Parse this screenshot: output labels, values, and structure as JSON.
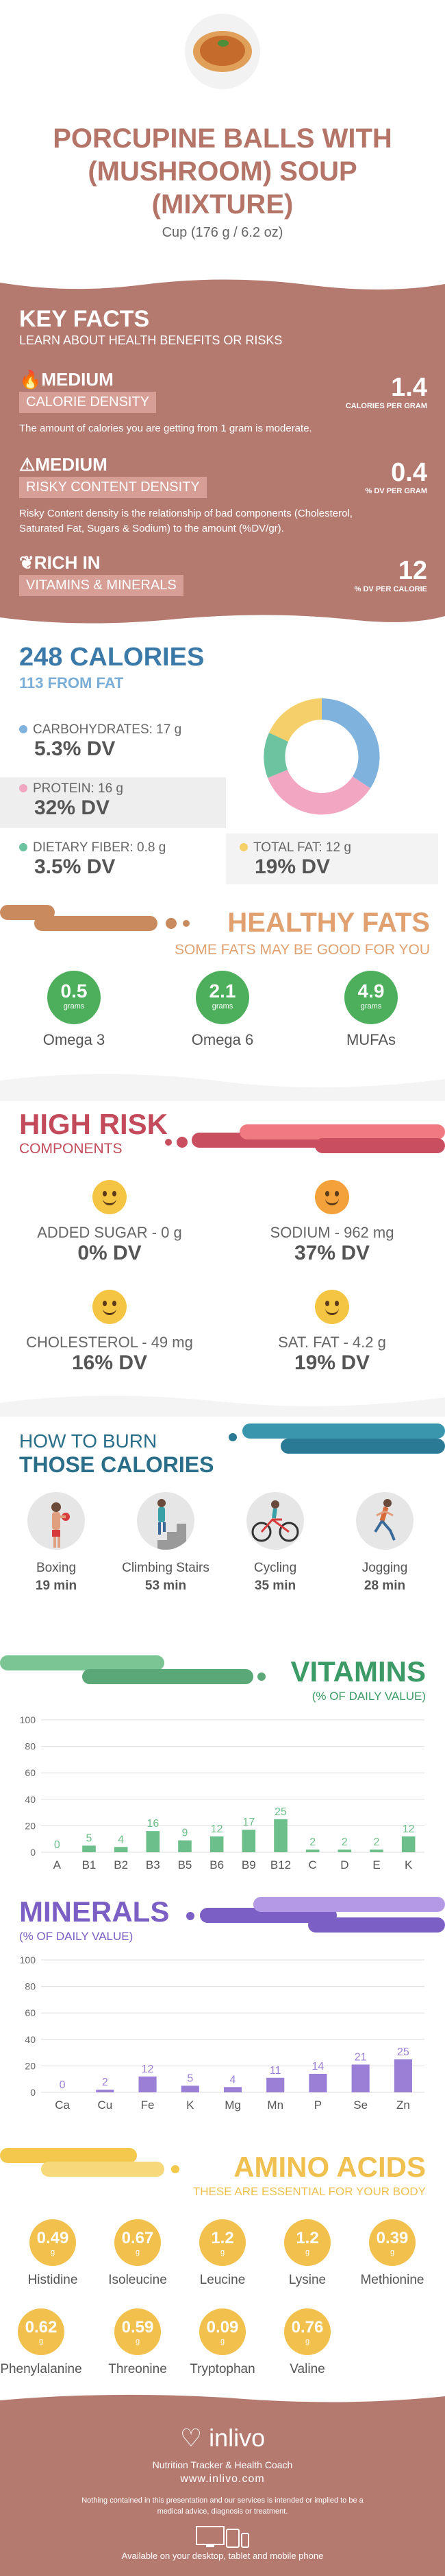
{
  "header": {
    "title_lines": [
      "PORCUPINE BALLS WITH",
      "(MUSHROOM) SOUP",
      "(MIXTURE)"
    ],
    "serving": "Cup (176 g / 6.2 oz)"
  },
  "key_facts": {
    "title": "KEY FACTS",
    "subtitle": "LEARN ABOUT HEALTH BENEFITS OR RISKS",
    "items": [
      {
        "level": "MEDIUM",
        "name": "CALORIE DENSITY",
        "value": "1.4",
        "unit": "CALORIES PER GRAM",
        "desc": "The amount of calories you are getting from 1 gram is moderate."
      },
      {
        "level": "MEDIUM",
        "name": "RISKY CONTENT DENSITY",
        "value": "0.4",
        "unit": "% DV PER GRAM",
        "desc": "Risky Content density is the relationship of bad components (Cholesterol, Saturated Fat, Sugars & Sodium) to the amount (%DV/gr)."
      },
      {
        "level": "RICH  IN",
        "name": "VITAMINS & MINERALS",
        "value": "12",
        "unit": "% DV PER CALORIE",
        "desc": ""
      }
    ]
  },
  "calories": {
    "title": "248 CALORIES",
    "from_fat": "113 FROM FAT",
    "macros": [
      {
        "label": "CARBOHYDRATES: 17 g",
        "dv": "5.3% DV",
        "color": "#7fb2dc"
      },
      {
        "label": "PROTEIN: 16 g",
        "dv": "32% DV",
        "color": "#f2a6c2"
      },
      {
        "label": "DIETARY FIBER: 0.8 g",
        "dv": "3.5% DV",
        "color": "#6cc3a0"
      },
      {
        "label": "TOTAL FAT: 12 g",
        "dv": "19% DV",
        "color": "#f5cf6a"
      }
    ]
  },
  "healthy_fats": {
    "title": "HEALTHY FATS",
    "subtitle": "SOME FATS MAY BE GOOD FOR YOU",
    "unit": "grams",
    "items": [
      {
        "value": "0.5",
        "name": "Omega 3"
      },
      {
        "value": "2.1",
        "name": "Omega 6"
      },
      {
        "value": "4.9",
        "name": "MUFAs"
      }
    ]
  },
  "high_risk": {
    "title": "HIGH RISK",
    "subtitle": "COMPONENTS",
    "items": [
      {
        "label": "ADDED SUGAR - 0 g",
        "dv": "0% DV"
      },
      {
        "label": "SODIUM - 962 mg",
        "dv": "37% DV"
      },
      {
        "label": "CHOLESTEROL - 49 mg",
        "dv": "16% DV"
      },
      {
        "label": "SAT. FAT - 4.2 g",
        "dv": "19% DV"
      }
    ]
  },
  "burn": {
    "title1": "HOW TO BURN",
    "title2": "THOSE CALORIES",
    "activities": [
      {
        "name": "Boxing",
        "time": "19 min"
      },
      {
        "name": "Climbing Stairs",
        "time": "53 min"
      },
      {
        "name": "Cycling",
        "time": "35 min"
      },
      {
        "name": "Jogging",
        "time": "28 min"
      }
    ]
  },
  "vitamins": {
    "title": "VITAMINS",
    "subtitle": "(% OF DAILY VALUE)",
    "color": "#6cbf8a"
  },
  "minerals": {
    "title": "MINERALS",
    "subtitle": "(% OF DAILY VALUE)",
    "color": "#9b7fd6"
  },
  "chart_data": [
    {
      "type": "bar",
      "title": "VITAMINS",
      "subtitle": "(% OF DAILY VALUE)",
      "categories": [
        "A",
        "B1",
        "B2",
        "B3",
        "B5",
        "B6",
        "B9",
        "B12",
        "C",
        "D",
        "E",
        "K"
      ],
      "values": [
        0,
        5,
        4,
        16,
        9,
        12,
        17,
        25,
        2,
        2,
        2,
        12
      ],
      "yticks": [
        0,
        20,
        40,
        60,
        80,
        100
      ],
      "ylim": [
        0,
        100
      ]
    },
    {
      "type": "bar",
      "title": "MINERALS",
      "subtitle": "(% OF DAILY VALUE)",
      "categories": [
        "Ca",
        "Cu",
        "Fe",
        "K",
        "Mg",
        "Mn",
        "P",
        "Se",
        "Zn"
      ],
      "values": [
        0,
        2,
        12,
        5,
        4,
        11,
        14,
        21,
        25
      ],
      "yticks": [
        0,
        20,
        40,
        60,
        80,
        100
      ],
      "ylim": [
        0,
        100
      ]
    }
  ],
  "amino": {
    "title": "AMINO ACIDS",
    "subtitle": "THESE ARE ESSENTIAL FOR YOUR BODY",
    "unit": "g",
    "items": [
      {
        "value": "0.49",
        "name": "Histidine"
      },
      {
        "value": "0.67",
        "name": "Isoleucine"
      },
      {
        "value": "1.2",
        "name": "Leucine"
      },
      {
        "value": "1.2",
        "name": "Lysine"
      },
      {
        "value": "0.39",
        "name": "Methionine"
      },
      {
        "value": "0.62",
        "name": "Phenylalanine"
      },
      {
        "value": "0.59",
        "name": "Threonine"
      },
      {
        "value": "0.09",
        "name": "Tryptophan"
      },
      {
        "value": "0.76",
        "name": "Valine"
      }
    ]
  },
  "footer": {
    "logo": "inlivo",
    "tagline": "Nutrition Tracker & Health Coach",
    "url": "www.inlivo.com",
    "disclaimer": "Nothing contained in this presentation and our services is intended or implied to be a medical advice, diagnosis or treatment.",
    "available": "Available on your desktop, tablet and mobile phone"
  }
}
